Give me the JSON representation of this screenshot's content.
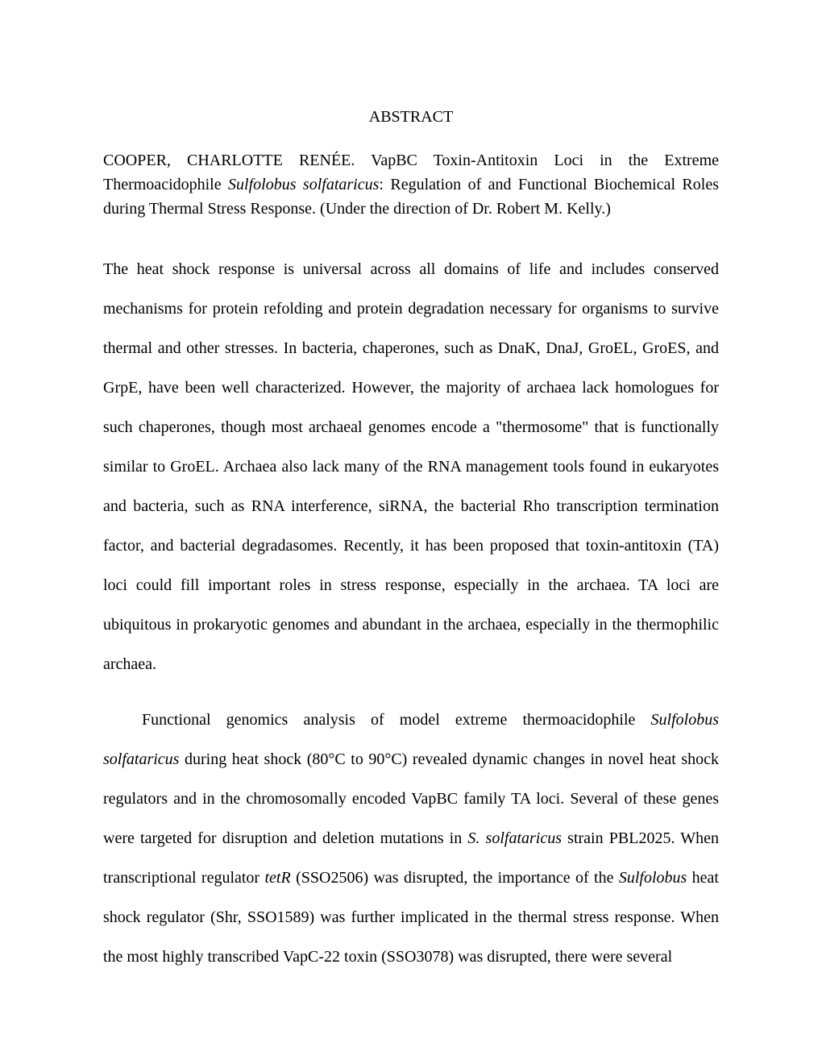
{
  "heading": "ABSTRACT",
  "citation": {
    "author": "COOPER, CHARLOTTE RENÉE.",
    "title_prefix": " VapBC Toxin-Antitoxin Loci in the Extreme Thermoacidophile ",
    "title_italic": "Sulfolobus solfataricus",
    "title_suffix": ": Regulation of and Functional Biochemical Roles during Thermal Stress Response. (Under the direction of Dr. Robert M. Kelly.)"
  },
  "para1": {
    "text": "The heat shock response is universal across all domains of life and includes conserved mechanisms for protein refolding and protein degradation necessary for organisms to survive thermal and other stresses.  In bacteria, chaperones, such as DnaK, DnaJ, GroEL, GroES, and GrpE, have been well characterized.  However, the majority of archaea lack homologues for such chaperones, though most archaeal genomes encode a \"thermosome\" that is functionally similar to GroEL.  Archaea also lack many of the RNA management tools found in eukaryotes and bacteria, such as RNA interference, siRNA, the bacterial Rho transcription termination factor, and bacterial degradasomes.  Recently, it has been proposed that toxin-antitoxin (TA) loci could fill important roles in stress response, especially in the archaea.  TA loci are ubiquitous in prokaryotic genomes and abundant in the archaea, especially in the thermophilic archaea."
  },
  "para2": {
    "seg1": "Functional genomics analysis of model extreme thermoacidophile ",
    "italic1": "Sulfolobus solfataricus",
    "seg2": " during heat shock (80°C to 90°C) revealed dynamic changes in novel heat shock regulators and in the chromosomally encoded VapBC family TA loci.  Several of these genes were targeted for disruption and deletion mutations in ",
    "italic2": "S. solfataricus",
    "seg3": " strain PBL2025. When transcriptional regulator ",
    "italic3": "tetR",
    "seg4": " (SSO2506) was disrupted, the importance of the ",
    "italic4": "Sulfolobus",
    "seg5": " heat shock regulator (Shr, SSO1589) was further implicated in the thermal stress response.  When the most highly transcribed VapC-22 toxin (SSO3078) was disrupted, there were several"
  }
}
